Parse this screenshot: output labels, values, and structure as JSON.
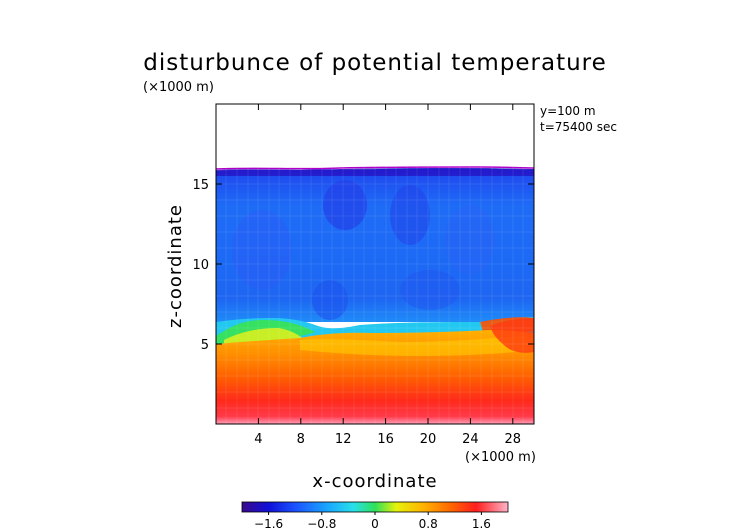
{
  "chart_data": {
    "type": "heatmap",
    "title": "disturbunce of potential temperature",
    "scale_note": "(×1000 m)",
    "xlabel": "x-coordinate",
    "ylabel": "z-coordinate",
    "x_unit": "(×1000 m)",
    "annotations": [
      "y=100 m",
      "t=75400 sec"
    ],
    "xlim": [
      0,
      30
    ],
    "ylim": [
      0,
      20
    ],
    "x_ticks": [
      4,
      8,
      12,
      16,
      20,
      24,
      28
    ],
    "y_ticks": [
      5,
      10,
      15
    ],
    "x_tick_labels": [
      "4",
      "8",
      "12",
      "16",
      "20",
      "24",
      "28"
    ],
    "y_tick_labels": [
      "5",
      "10",
      "15"
    ],
    "domain_top_z": 16,
    "colorbar": {
      "range": [
        -2.0,
        2.0
      ],
      "ticks": [
        -1.6,
        -0.8,
        0,
        0.8,
        1.6
      ],
      "tick_labels": [
        "−1.6",
        "−0.8",
        "0",
        "0.8",
        "1.6"
      ],
      "colors": [
        "#3b0a8c",
        "#1010d8",
        "#1a52ff",
        "#19a6ff",
        "#28e0e8",
        "#2ee05a",
        "#e6f20a",
        "#ffb400",
        "#ff6a00",
        "#ff1e1e",
        "#ffb4c8"
      ]
    },
    "field_description_samples": [
      {
        "z": 15.5,
        "value": -1.7
      },
      {
        "z": 12,
        "value": -1.5
      },
      {
        "z": 8,
        "value": -1.3
      },
      {
        "z": 6.5,
        "value": -0.9
      },
      {
        "z": 5.5,
        "value": 0.9
      },
      {
        "z": 3,
        "value": 1.3
      },
      {
        "z": 0.5,
        "value": 1.8
      }
    ]
  }
}
